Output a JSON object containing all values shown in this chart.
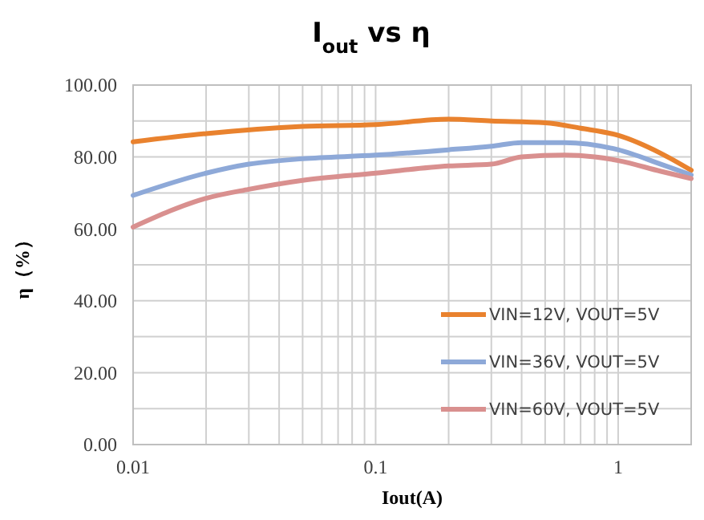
{
  "chart_data": {
    "type": "line",
    "title": "I$_{out}$ vs η",
    "xlabel": "Iout(A)",
    "ylabel": "η（%）",
    "log": "x",
    "xlim": [
      0.01,
      2
    ],
    "xticks": [
      {
        "value": 0.01,
        "label": "0.01"
      },
      {
        "value": 0.02,
        "label": null
      },
      {
        "value": 0.03,
        "label": null
      },
      {
        "value": 0.04,
        "label": null
      },
      {
        "value": 0.05,
        "label": null
      },
      {
        "value": 0.06,
        "label": null
      },
      {
        "value": 0.07,
        "label": null
      },
      {
        "value": 0.08,
        "label": null
      },
      {
        "value": 0.09,
        "label": null
      },
      {
        "value": 0.1,
        "label": "0.1"
      },
      {
        "value": 0.2,
        "label": null
      },
      {
        "value": 0.3,
        "label": null
      },
      {
        "value": 0.4,
        "label": null
      },
      {
        "value": 0.5,
        "label": null
      },
      {
        "value": 0.6,
        "label": null
      },
      {
        "value": 0.7,
        "label": null
      },
      {
        "value": 0.8,
        "label": null
      },
      {
        "value": 0.9,
        "label": null
      },
      {
        "value": 1,
        "label": "1"
      },
      {
        "value": 2,
        "label": null
      }
    ],
    "ylim": [
      0,
      100
    ],
    "yticks": [
      {
        "value": 0,
        "label": "0.00"
      },
      {
        "value": 10,
        "label": null
      },
      {
        "value": 20,
        "label": "20.00"
      },
      {
        "value": 30,
        "label": null
      },
      {
        "value": 40,
        "label": "40.00"
      },
      {
        "value": 50,
        "label": null
      },
      {
        "value": 60,
        "label": "60.00"
      },
      {
        "value": 70,
        "label": null
      },
      {
        "value": 80,
        "label": "80.00"
      },
      {
        "value": 90,
        "label": null
      },
      {
        "value": 100,
        "label": "100.00"
      }
    ],
    "grid": true,
    "legend": "bottom right",
    "line_style": "solid",
    "marker": "none",
    "series": [
      {
        "name": "VIN=12V, VOUT=5V",
        "color": "#e9822e",
        "x": [
          0.01,
          0.02,
          0.05,
          0.1,
          0.2,
          0.3,
          0.5,
          0.7,
          1,
          1.5,
          2
        ],
        "values": [
          84.2,
          86.5,
          88.5,
          89,
          90.5,
          90,
          89.5,
          88,
          86,
          81,
          76.3
        ]
      },
      {
        "name": "VIN=36V, VOUT=5V",
        "color": "#8ea9d8",
        "x": [
          0.01,
          0.02,
          0.03,
          0.05,
          0.1,
          0.2,
          0.3,
          0.4,
          0.6,
          1,
          1.5,
          2
        ],
        "values": [
          69.3,
          75.5,
          78,
          79.5,
          80.5,
          82,
          83,
          84,
          84,
          82,
          78,
          75
        ]
      },
      {
        "name": "VIN=60V, VOUT=5V",
        "color": "#d9908f",
        "x": [
          0.01,
          0.02,
          0.03,
          0.05,
          0.1,
          0.2,
          0.3,
          0.4,
          0.6,
          0.8,
          1,
          1.5,
          2
        ],
        "values": [
          60.5,
          68.5,
          71,
          73.5,
          75.5,
          77.5,
          78,
          80,
          80.5,
          80,
          79,
          76,
          74
        ]
      }
    ]
  }
}
